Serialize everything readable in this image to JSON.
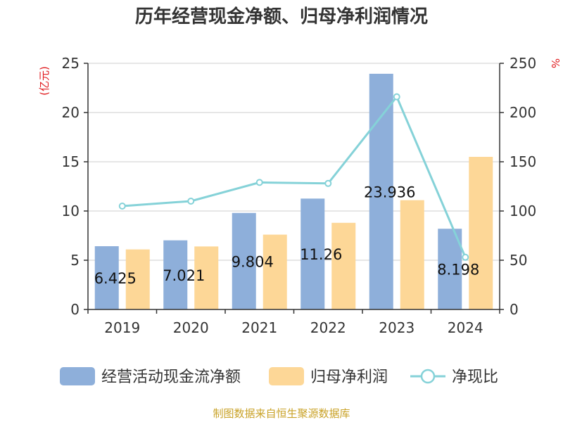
{
  "chart_data": {
    "type": "bar",
    "title": "历年经营现金净额、归母净利润情况",
    "categories": [
      "2019",
      "2020",
      "2021",
      "2022",
      "2023",
      "2024"
    ],
    "series": [
      {
        "name": "经营活动现金流净额",
        "type": "bar",
        "axis": "left",
        "values": [
          6.425,
          7.021,
          9.804,
          11.26,
          23.936,
          8.198
        ],
        "labels": [
          "6.425",
          "7.021",
          "9.804",
          "11.26",
          "23.936",
          "8.198"
        ],
        "color": "#8eafda"
      },
      {
        "name": "归母净利润",
        "type": "bar",
        "axis": "left",
        "values": [
          6.1,
          6.4,
          7.6,
          8.8,
          11.1,
          15.5
        ],
        "color": "#fdd797"
      },
      {
        "name": "净现比",
        "type": "line",
        "axis": "right",
        "values": [
          105,
          110,
          129,
          128,
          216,
          53
        ],
        "color": "#85d2d8"
      }
    ],
    "left_axis": {
      "unit": "(亿元)",
      "ylim": [
        0,
        25
      ],
      "ticks": [
        "0",
        "5",
        "10",
        "15",
        "20",
        "25"
      ]
    },
    "right_axis": {
      "unit": "%",
      "ylim": [
        0,
        250
      ],
      "ticks": [
        "0",
        "50",
        "100",
        "150",
        "200",
        "250"
      ]
    },
    "grid": true,
    "legend_position": "bottom"
  },
  "source_text": "制图数据来自恒生聚源数据库"
}
